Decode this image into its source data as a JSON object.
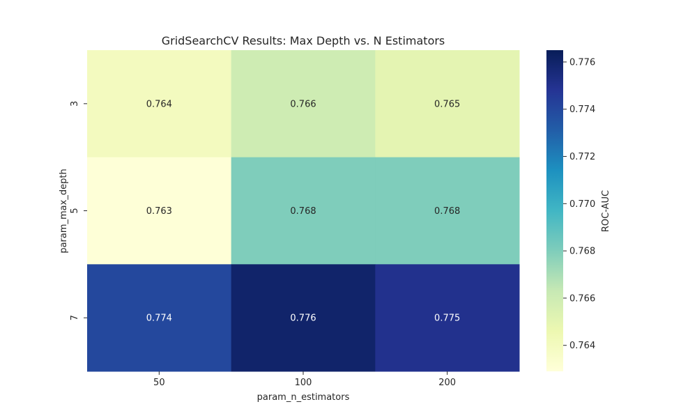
{
  "chart_data": {
    "type": "heatmap",
    "title": "GridSearchCV Results: Max Depth vs. N Estimators",
    "xlabel": "param_n_estimators",
    "ylabel": "param_max_depth",
    "x_categories": [
      "50",
      "100",
      "200"
    ],
    "y_categories": [
      "3",
      "5",
      "7"
    ],
    "values": [
      [
        0.764,
        0.766,
        0.765
      ],
      [
        0.763,
        0.768,
        0.768
      ],
      [
        0.774,
        0.776,
        0.775
      ]
    ],
    "annotations": [
      [
        "0.764",
        "0.766",
        "0.765"
      ],
      [
        "0.763",
        "0.768",
        "0.768"
      ],
      [
        "0.774",
        "0.776",
        "0.775"
      ]
    ],
    "colorbar": {
      "label": "ROC-AUC",
      "colormap": "YlGnBu",
      "range": [
        0.7629,
        0.7765
      ],
      "ticks": [
        0.764,
        0.766,
        0.768,
        0.77,
        0.772,
        0.774,
        0.776
      ],
      "tick_labels": [
        "0.764",
        "0.766",
        "0.768",
        "0.770",
        "0.772",
        "0.774",
        "0.776"
      ]
    },
    "grid": false,
    "legend": "colorbar-right"
  },
  "colors": {
    "colormap_stops": [
      "#ffffd9",
      "#edf8b1",
      "#c7e9b4",
      "#7fcdbb",
      "#41b6c4",
      "#1d91c0",
      "#225ea8",
      "#253494",
      "#081d58"
    ],
    "text_light": "#ffffff",
    "text_dark": "#262626"
  }
}
